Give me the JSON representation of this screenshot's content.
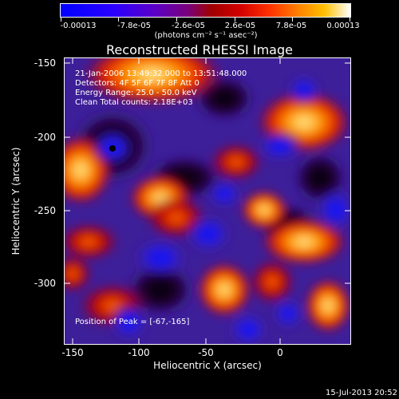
{
  "colorbar": {
    "tick_labels": [
      "-0.00013",
      "-7.8e-05",
      "-2.6e-05",
      "2.6e-05",
      "7.8e-05",
      "0.00013"
    ],
    "units_label": "(photons cm⁻² s⁻¹ asec⁻²)"
  },
  "title": "Reconstructed RHESSI Image",
  "annotations": {
    "line1": "21-Jan-2006 13:49:32.000 to 13:51:48.000",
    "line2": "Detectors: 4F 5F 6F 7F 8F  Att 0",
    "line3": "Energy Range: 25.0 - 50.0 keV",
    "line4": "Clean   Total counts: 2.18E+03",
    "peak": "Position of Peak = [-67,-165]"
  },
  "axes": {
    "x_label": "Heliocentric X (arcsec)",
    "y_label": "Heliocentric Y (arcsec)",
    "x_ticks": [
      "-150",
      "-100",
      "-50",
      "0"
    ],
    "y_ticks": [
      "-150",
      "-200",
      "-250",
      "-300"
    ]
  },
  "timestamp": "15-Jul-2013 20:52",
  "colors": {
    "background": "#000000",
    "low": "#0000ff",
    "mid": "#5a00c8",
    "zero": "#a00000",
    "high": "#ff8000",
    "max": "#ffffff"
  }
}
